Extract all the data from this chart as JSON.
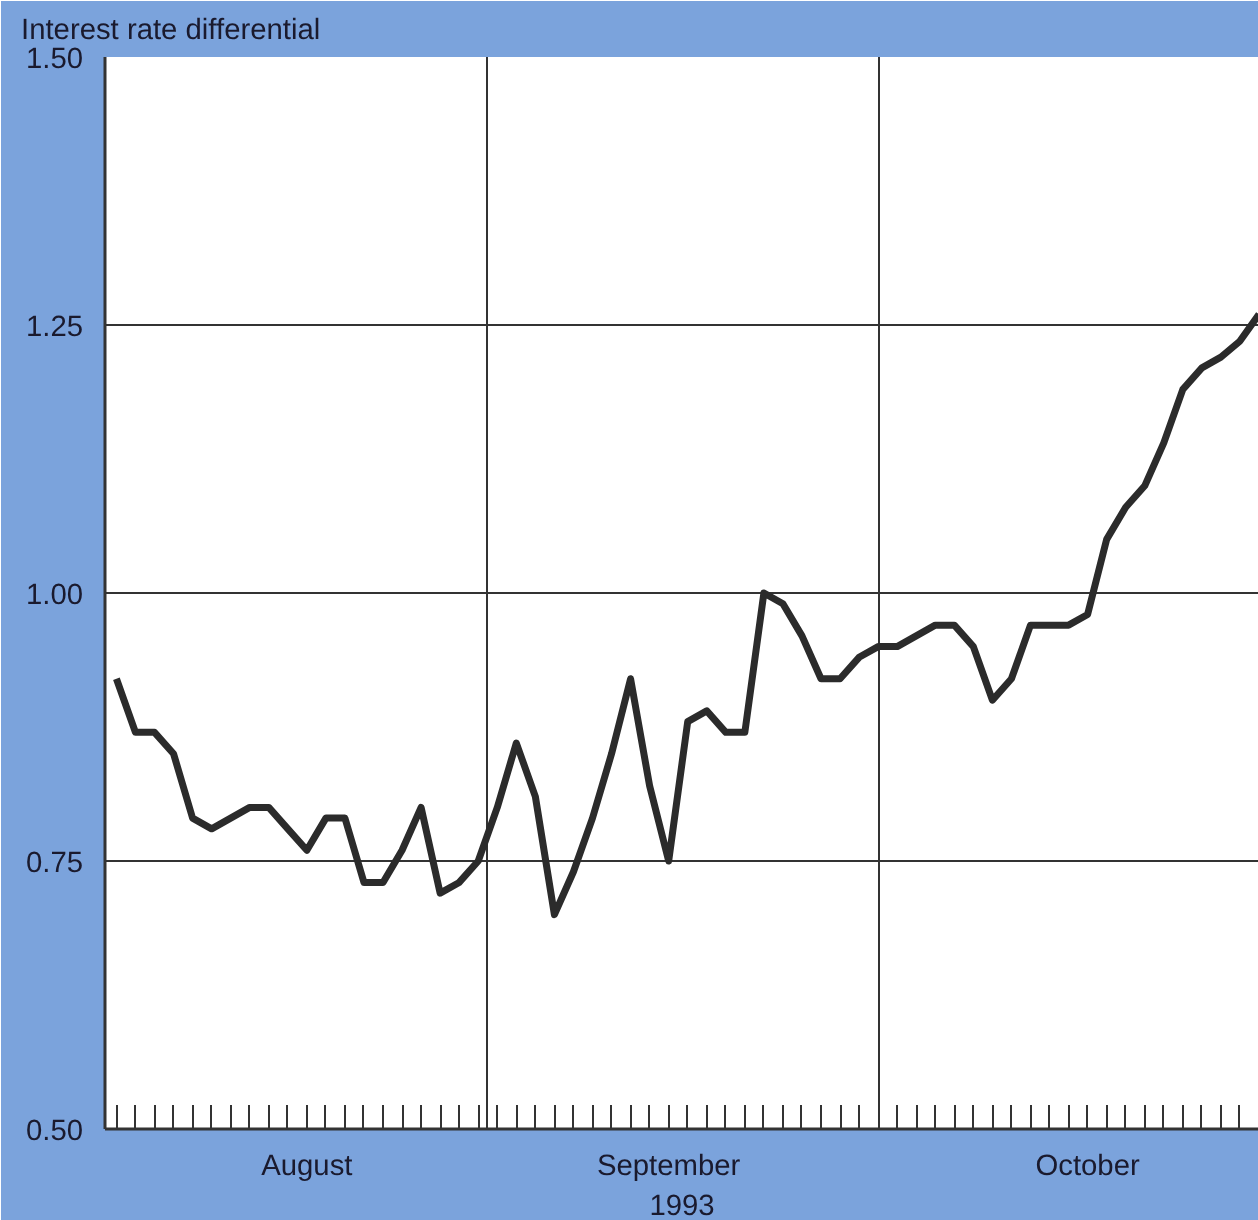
{
  "chart_data": {
    "type": "line",
    "ylabel": "Interest rate differential",
    "xlabel": "1993",
    "categories": [
      null,
      null,
      null,
      null,
      null,
      null,
      null,
      null,
      null,
      null,
      "August",
      null,
      null,
      null,
      null,
      null,
      null,
      null,
      null,
      null,
      null,
      null,
      null,
      null,
      null,
      null,
      null,
      null,
      null,
      "September",
      null,
      null,
      null,
      null,
      null,
      null,
      null,
      null,
      null,
      null,
      null,
      null,
      null,
      null,
      null,
      null,
      null,
      null,
      null,
      null,
      null,
      "October",
      null,
      null,
      null,
      null,
      null,
      null,
      null,
      null,
      null
    ],
    "series": [
      {
        "color": "#2b2b2b",
        "values": [
          0.92,
          0.87,
          0.87,
          0.85,
          0.79,
          0.78,
          0.79,
          0.8,
          0.8,
          0.78,
          0.76,
          0.79,
          0.79,
          0.73,
          0.73,
          0.76,
          0.8,
          0.72,
          0.73,
          0.75,
          0.8,
          0.86,
          0.81,
          0.7,
          0.74,
          0.79,
          0.85,
          0.92,
          0.82,
          0.75,
          0.88,
          0.89,
          0.87,
          0.87,
          1.0,
          0.99,
          0.96,
          0.92,
          0.92,
          0.94,
          0.95,
          0.95,
          0.96,
          0.97,
          0.97,
          0.95,
          0.9,
          0.92,
          0.97,
          0.97,
          0.97,
          0.98,
          1.05,
          1.08,
          1.1,
          1.14,
          1.19,
          1.21,
          1.22,
          1.235,
          1.26
        ]
      }
    ],
    "ylim": [
      0.5,
      1.5
    ],
    "yticks": [
      {
        "value": 0.5,
        "label": "0.50"
      },
      {
        "value": 0.75,
        "label": "0.75"
      },
      {
        "value": 1.0,
        "label": "1.00"
      },
      {
        "value": 1.25,
        "label": "1.25"
      },
      {
        "value": 1.5,
        "label": "1.50"
      }
    ],
    "grid": true,
    "line_style": "solid"
  }
}
